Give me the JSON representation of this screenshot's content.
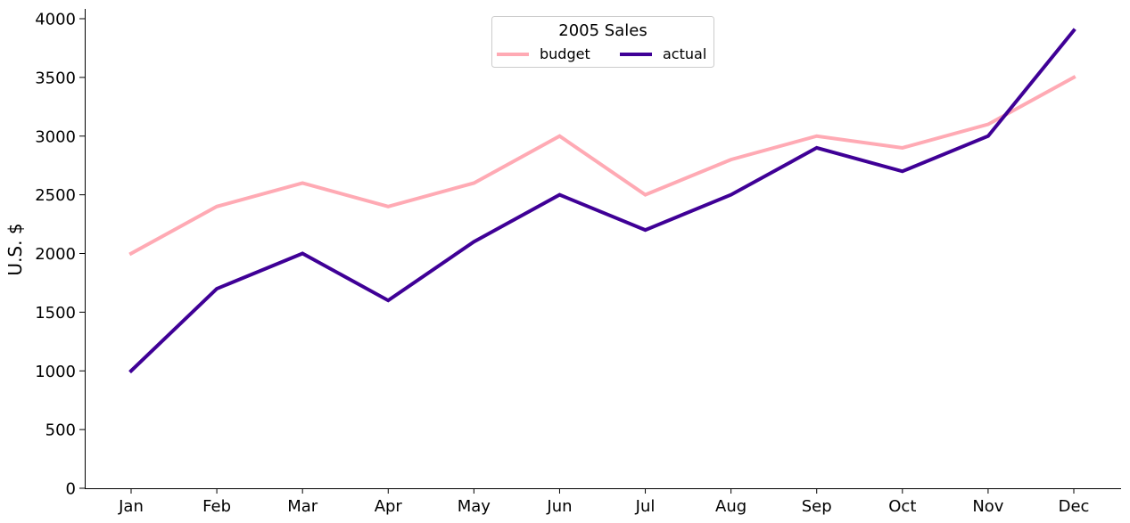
{
  "chart_data": {
    "type": "line",
    "title": "",
    "xlabel": "",
    "ylabel": "U.S. $",
    "ylim": [
      0,
      4000
    ],
    "yticks": [
      0,
      500,
      1000,
      1500,
      2000,
      2500,
      3000,
      3500,
      4000
    ],
    "categories": [
      "Jan",
      "Feb",
      "Mar",
      "Apr",
      "May",
      "Jun",
      "Jul",
      "Aug",
      "Sep",
      "Oct",
      "Nov",
      "Dec"
    ],
    "grid": false,
    "legend": {
      "title": "2005 Sales",
      "placement": "top-center",
      "columns": 2
    },
    "series": [
      {
        "name": "budget",
        "color": "#ffaab4",
        "values": [
          2000,
          2400,
          2600,
          2400,
          2600,
          3000,
          2500,
          2800,
          3000,
          2900,
          3100,
          3500
        ]
      },
      {
        "name": "actual",
        "color": "#3f0096",
        "values": [
          1000,
          1700,
          2000,
          1600,
          2100,
          2500,
          2200,
          2500,
          2900,
          2700,
          3000,
          3900
        ]
      }
    ]
  }
}
